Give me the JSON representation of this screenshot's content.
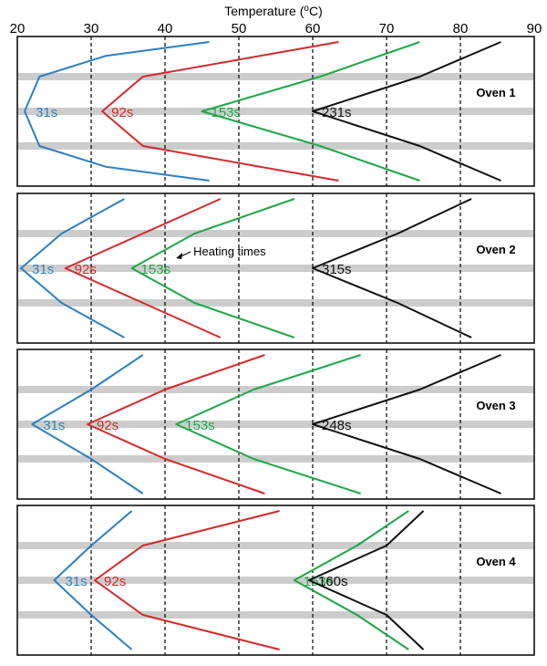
{
  "chart_data": {
    "type": "line",
    "xlabel": "Temperature (°C)",
    "xlabel_parts": [
      "Temperature (",
      "o",
      "C)"
    ],
    "xlim": [
      20,
      90
    ],
    "xticks": [
      "20",
      "30",
      "40",
      "50",
      "60",
      "70",
      "80",
      "90"
    ],
    "vertical_dashed_gridlines_at": [
      30,
      40,
      50,
      60,
      70,
      80
    ],
    "colors": {
      "31s": "#2e7fc1",
      "92s": "#d42a2a",
      "153s": "#1fa64a",
      "long": "#111111",
      "band": "#cccccc"
    },
    "panels": [
      {
        "label": "Oven 1",
        "series": [
          {
            "name": "31s",
            "color_key": "31s",
            "points": [
              [
                46,
                0
              ],
              [
                32,
                0.1
              ],
              [
                23,
                0.25
              ],
              [
                21,
                0.5
              ],
              [
                23,
                0.75
              ],
              [
                32,
                0.9
              ],
              [
                46,
                1
              ]
            ]
          },
          {
            "name": "92s",
            "color_key": "92s",
            "points": [
              [
                63.5,
                0
              ],
              [
                37,
                0.25
              ],
              [
                31.5,
                0.5
              ],
              [
                37,
                0.75
              ],
              [
                63.5,
                1
              ]
            ]
          },
          {
            "name": "153s",
            "color_key": "153s",
            "points": [
              [
                74.5,
                0
              ],
              [
                61,
                0.25
              ],
              [
                45,
                0.5
              ],
              [
                61,
                0.75
              ],
              [
                74.5,
                1
              ]
            ]
          },
          {
            "name": "231s",
            "color_key": "long",
            "points": [
              [
                85.5,
                0
              ],
              [
                74.5,
                0.25
              ],
              [
                60,
                0.5
              ],
              [
                74.5,
                0.75
              ],
              [
                85.5,
                1
              ]
            ]
          }
        ]
      },
      {
        "label": "Oven 2",
        "annotation": "Heating times",
        "series": [
          {
            "name": "31s",
            "color_key": "31s",
            "points": [
              [
                34.5,
                0
              ],
              [
                26,
                0.25
              ],
              [
                20.5,
                0.5
              ],
              [
                26,
                0.75
              ],
              [
                34.5,
                1
              ]
            ]
          },
          {
            "name": "92s",
            "color_key": "92s",
            "points": [
              [
                47.5,
                0
              ],
              [
                37,
                0.25
              ],
              [
                26.5,
                0.5
              ],
              [
                37,
                0.75
              ],
              [
                47.5,
                1
              ]
            ]
          },
          {
            "name": "153s",
            "color_key": "153s",
            "points": [
              [
                57.5,
                0
              ],
              [
                44,
                0.25
              ],
              [
                35.5,
                0.5
              ],
              [
                44,
                0.75
              ],
              [
                57.5,
                1
              ]
            ]
          },
          {
            "name": "315s",
            "color_key": "long",
            "points": [
              [
                81.5,
                0
              ],
              [
                71.5,
                0.25
              ],
              [
                60,
                0.5
              ],
              [
                71.5,
                0.75
              ],
              [
                81.5,
                1
              ]
            ]
          }
        ]
      },
      {
        "label": "Oven 3",
        "series": [
          {
            "name": "31s",
            "color_key": "31s",
            "points": [
              [
                37,
                0
              ],
              [
                30,
                0.25
              ],
              [
                22,
                0.5
              ],
              [
                30,
                0.75
              ],
              [
                37,
                1
              ]
            ]
          },
          {
            "name": "92s",
            "color_key": "92s",
            "points": [
              [
                53.5,
                0
              ],
              [
                40,
                0.25
              ],
              [
                29.5,
                0.5
              ],
              [
                40,
                0.75
              ],
              [
                53.5,
                1
              ]
            ]
          },
          {
            "name": "153s",
            "color_key": "153s",
            "points": [
              [
                66.5,
                0
              ],
              [
                52,
                0.25
              ],
              [
                41.5,
                0.5
              ],
              [
                52,
                0.75
              ],
              [
                66.5,
                1
              ]
            ]
          },
          {
            "name": "248s",
            "color_key": "long",
            "points": [
              [
                85.5,
                0
              ],
              [
                74.5,
                0.25
              ],
              [
                60,
                0.5
              ],
              [
                74.5,
                0.75
              ],
              [
                85.5,
                1
              ]
            ]
          }
        ]
      },
      {
        "label": "Oven 4",
        "series": [
          {
            "name": "31s",
            "color_key": "31s",
            "points": [
              [
                35.5,
                0
              ],
              [
                30,
                0.25
              ],
              [
                25,
                0.5
              ],
              [
                30,
                0.75
              ],
              [
                35.5,
                1
              ]
            ]
          },
          {
            "name": "92s",
            "color_key": "92s",
            "points": [
              [
                55.5,
                0
              ],
              [
                37,
                0.25
              ],
              [
                30.5,
                0.5
              ],
              [
                37,
                0.75
              ],
              [
                55.5,
                1
              ]
            ]
          },
          {
            "name": "153s",
            "color_key": "153s",
            "points": [
              [
                73,
                0
              ],
              [
                66,
                0.25
              ],
              [
                57.5,
                0.5
              ],
              [
                66,
                0.75
              ],
              [
                73,
                1
              ]
            ]
          },
          {
            "name": "160s",
            "color_key": "long",
            "points": [
              [
                75,
                0
              ],
              [
                70,
                0.25
              ],
              [
                59.5,
                0.5
              ],
              [
                70,
                0.75
              ],
              [
                75,
                1
              ]
            ]
          }
        ]
      }
    ]
  }
}
